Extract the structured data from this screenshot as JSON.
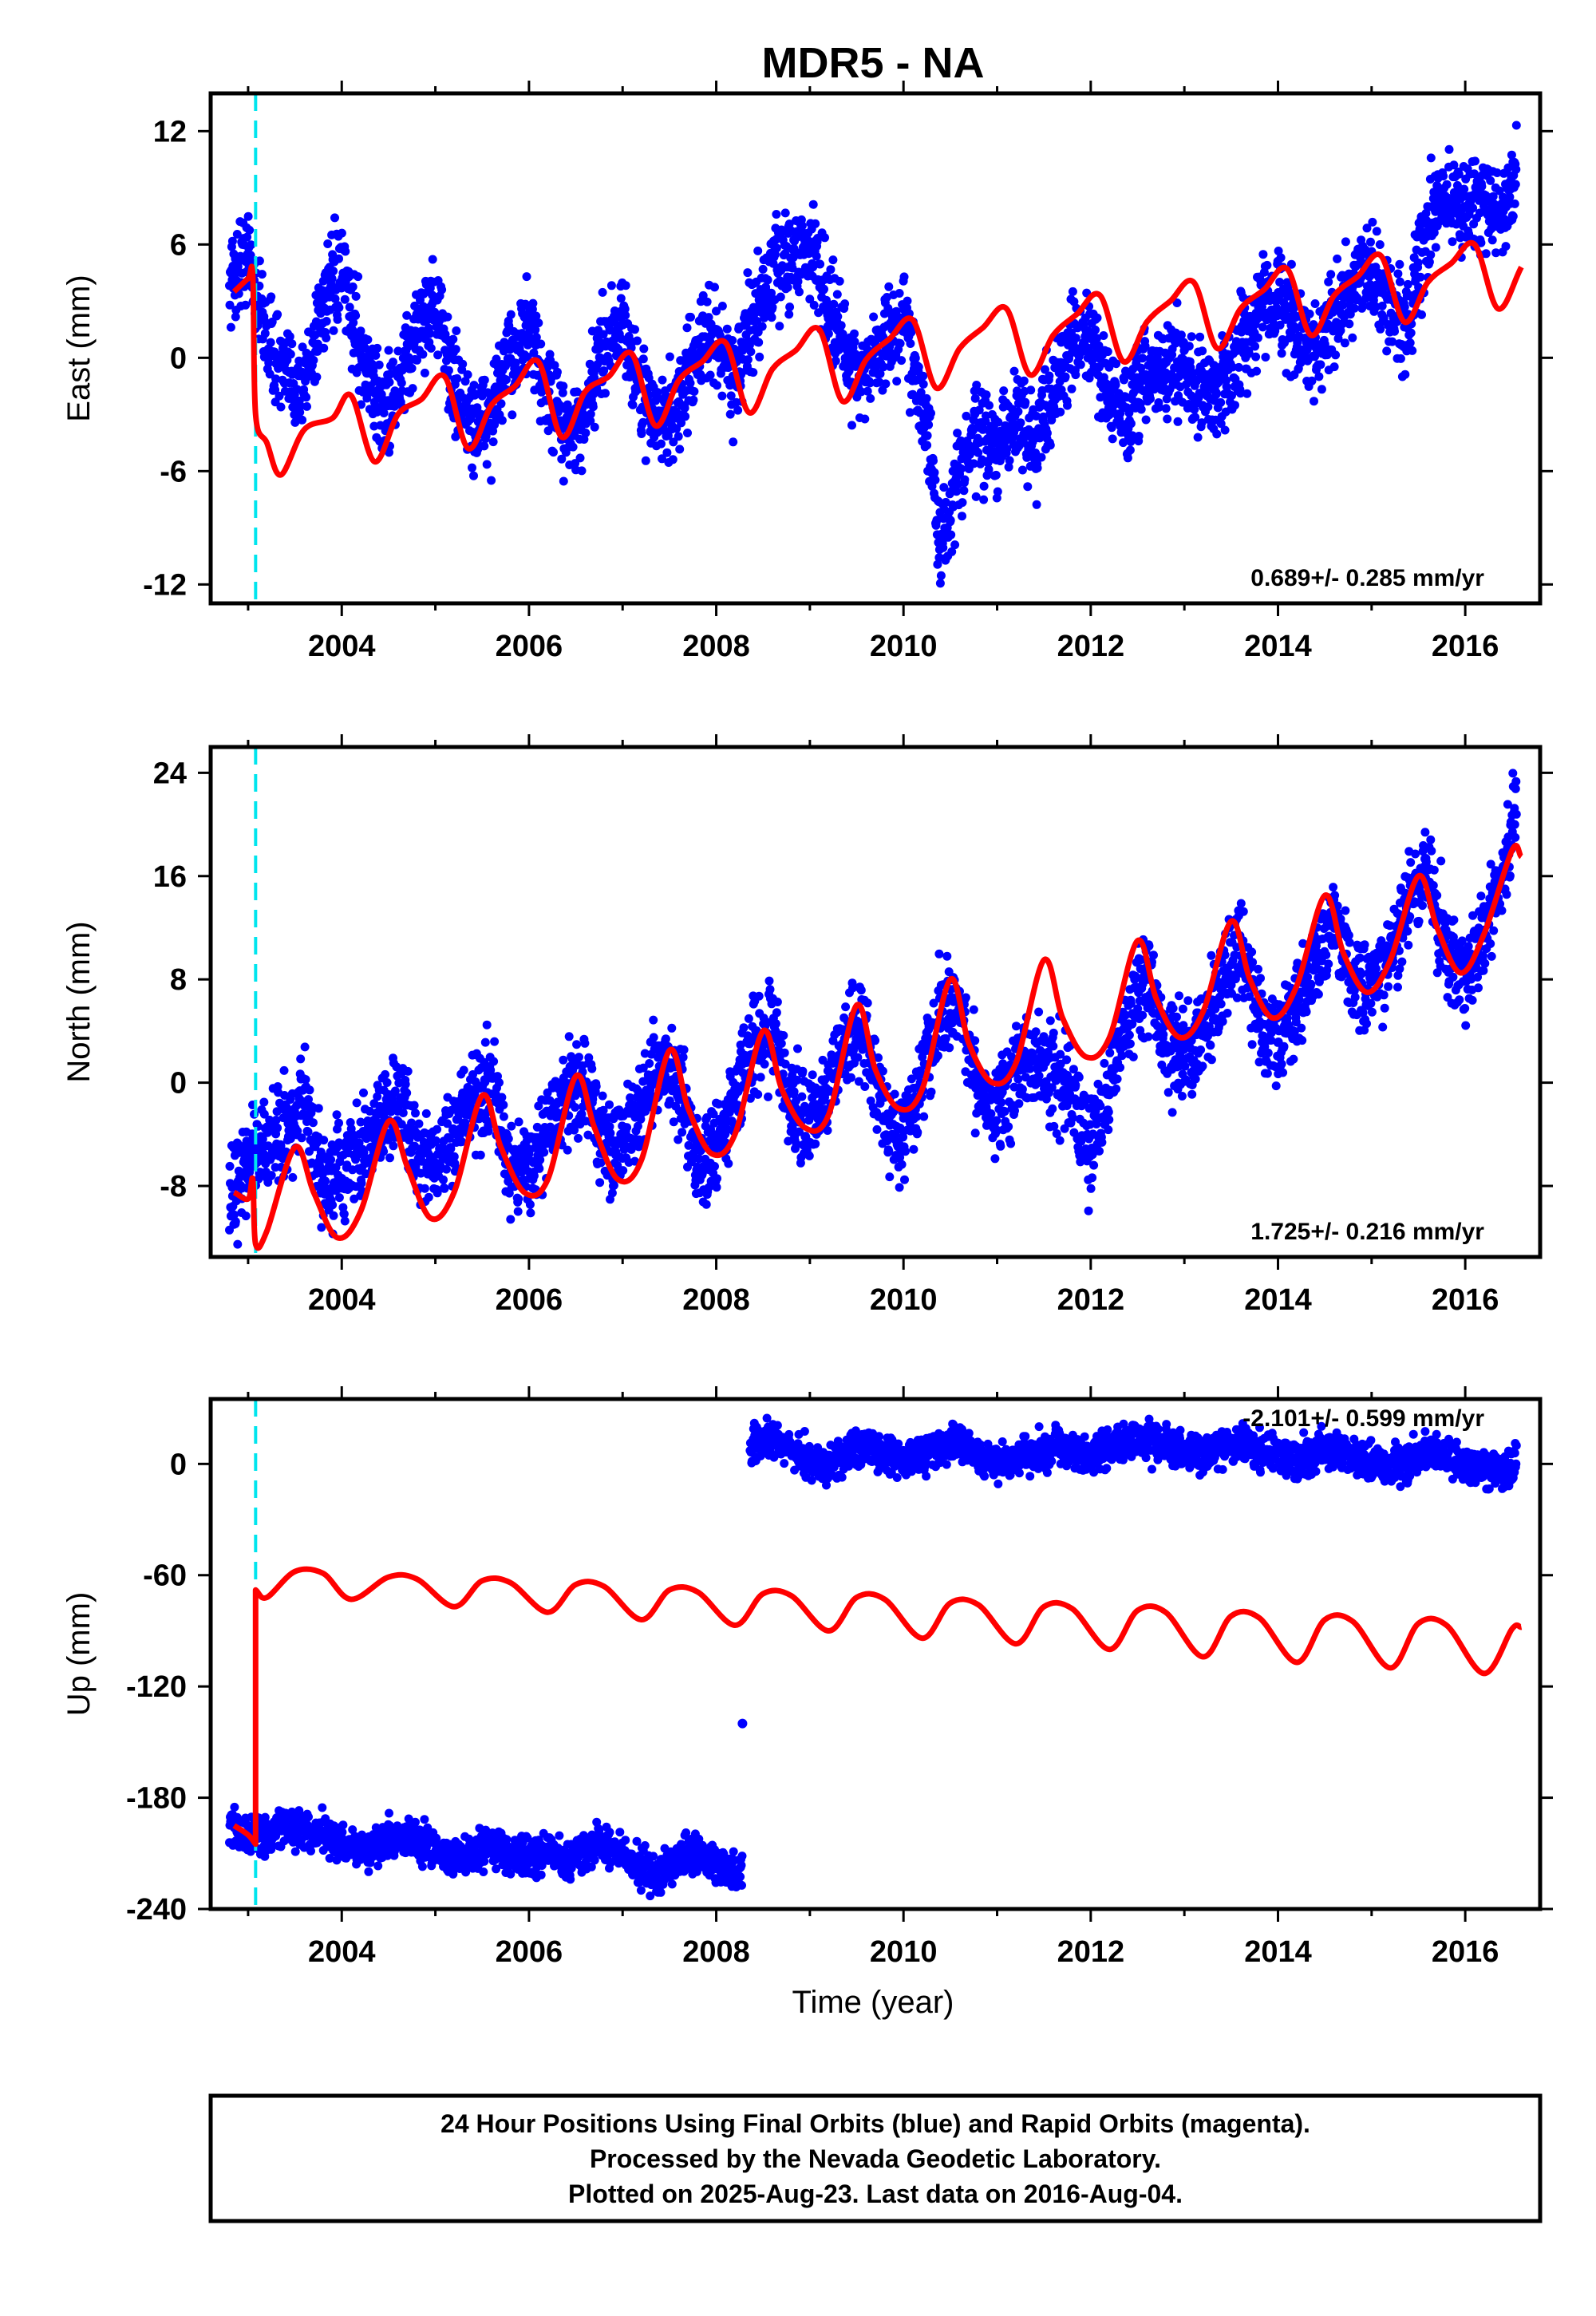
{
  "figure_title": "MDR5 - NA",
  "xlabel": "Time (year)",
  "footer": {
    "line1": "24 Hour Positions Using Final Orbits (blue) and Rapid Orbits (magenta).",
    "line2": "Processed by the Nevada Geodetic Laboratory.",
    "line3": "Plotted on 2025-Aug-23. Last data on 2016-Aug-04."
  },
  "colors": {
    "data_points": "#0000ff",
    "model_line": "#ff0000",
    "event_marker": "#00e5ee",
    "axes": "#000000"
  },
  "chart_data": [
    {
      "type": "scatter",
      "ylabel": "East (mm)",
      "rate_label": "0.689+/- 0.285 mm/yr",
      "xlim": [
        2002.6,
        2016.8
      ],
      "ylim": [
        -13,
        14
      ],
      "xticks": [
        "2004",
        "2006",
        "2008",
        "2010",
        "2012",
        "2014",
        "2016"
      ],
      "yticks": [
        "12",
        "6",
        "0",
        "-6",
        "-12"
      ],
      "event_marker_x": 2003.08,
      "observations": {
        "x": [
          2002.8,
          2003.0,
          2003.2,
          2003.4,
          2003.6,
          2003.8,
          2004.0,
          2004.2,
          2004.4,
          2004.6,
          2004.8,
          2005.0,
          2005.2,
          2005.4,
          2005.6,
          2005.8,
          2006.0,
          2006.2,
          2006.4,
          2006.6,
          2006.8,
          2007.0,
          2007.2,
          2007.4,
          2007.6,
          2007.8,
          2008.0,
          2008.2,
          2008.4,
          2008.6,
          2008.8,
          2009.0,
          2009.2,
          2009.4,
          2009.6,
          2009.8,
          2010.0,
          2010.2,
          2010.4,
          2010.6,
          2010.8,
          2011.0,
          2011.2,
          2011.4,
          2011.6,
          2011.8,
          2012.0,
          2012.2,
          2012.4,
          2012.6,
          2012.8,
          2013.0,
          2013.2,
          2013.4,
          2013.6,
          2013.8,
          2014.0,
          2014.2,
          2014.4,
          2014.6,
          2014.8,
          2015.0,
          2015.2,
          2015.4,
          2015.6,
          2015.8,
          2016.0,
          2016.2,
          2016.4,
          2016.55
        ],
        "y": [
          4.0,
          5.5,
          1.0,
          -1.0,
          -1.5,
          3.0,
          4.5,
          0.5,
          -2.5,
          -2.0,
          1.5,
          3.0,
          -1.5,
          -3.5,
          -3.0,
          0.0,
          1.5,
          -2.0,
          -4.0,
          -3.5,
          1.0,
          2.0,
          -2.0,
          -3.5,
          -2.5,
          0.5,
          1.0,
          -1.0,
          2.0,
          4.5,
          5.5,
          6.0,
          3.0,
          0.0,
          -1.0,
          1.0,
          2.0,
          -2.0,
          -10.0,
          -6.0,
          -4.0,
          -5.0,
          -3.0,
          -4.5,
          -1.5,
          0.5,
          1.0,
          -2.0,
          -3.5,
          -1.0,
          -0.5,
          -0.5,
          -2.0,
          -1.5,
          0.5,
          2.5,
          3.5,
          1.0,
          0.5,
          2.5,
          3.5,
          4.5,
          2.5,
          2.0,
          7.0,
          8.5,
          8.0,
          8.5,
          7.5,
          10.5
        ]
      },
      "model": {
        "x": [
          2002.85,
          2003.0,
          2003.05,
          2003.08,
          2003.2,
          2003.35,
          2003.6,
          2003.9,
          2004.1,
          2004.35,
          2004.6,
          2004.85,
          2005.1,
          2005.35,
          2005.6,
          2005.85,
          2006.1,
          2006.35,
          2006.6,
          2006.85,
          2007.1,
          2007.35,
          2007.6,
          2007.85,
          2008.1,
          2008.35,
          2008.6,
          2008.85,
          2009.1,
          2009.35,
          2009.6,
          2009.85,
          2010.1,
          2010.35,
          2010.6,
          2010.85,
          2011.1,
          2011.35,
          2011.6,
          2011.85,
          2012.1,
          2012.35,
          2012.6,
          2012.85,
          2013.1,
          2013.35,
          2013.6,
          2013.85,
          2014.1,
          2014.35,
          2014.6,
          2014.85,
          2015.1,
          2015.35,
          2015.6,
          2015.85,
          2016.1,
          2016.35,
          2016.6
        ],
        "y": [
          3.5,
          4.2,
          4.3,
          -3.0,
          -4.5,
          -6.2,
          -3.8,
          -3.2,
          -2.0,
          -5.5,
          -3.0,
          -2.2,
          -1.0,
          -4.8,
          -2.5,
          -1.5,
          -0.2,
          -4.2,
          -1.8,
          -1.0,
          0.2,
          -3.6,
          -1.2,
          -0.2,
          0.8,
          -2.9,
          -0.6,
          0.4,
          1.5,
          -2.3,
          -0.1,
          1.0,
          2.0,
          -1.6,
          0.5,
          1.6,
          2.6,
          -0.9,
          1.2,
          2.3,
          3.3,
          -0.2,
          1.9,
          3.0,
          4.0,
          0.5,
          2.6,
          3.6,
          4.7,
          1.2,
          3.3,
          4.3,
          5.4,
          1.9,
          4.0,
          5.0,
          6.0,
          2.6,
          4.8
        ]
      }
    },
    {
      "type": "scatter",
      "ylabel": "North (mm)",
      "rate_label": "1.725+/- 0.216 mm/yr",
      "xlim": [
        2002.6,
        2016.8
      ],
      "ylim": [
        -13.5,
        26
      ],
      "xticks": [
        "2004",
        "2006",
        "2008",
        "2010",
        "2012",
        "2014",
        "2016"
      ],
      "yticks": [
        "24",
        "16",
        "8",
        "0",
        "-8"
      ],
      "event_marker_x": 2003.08,
      "observations": {
        "x": [
          2002.8,
          2003.0,
          2003.2,
          2003.4,
          2003.6,
          2003.8,
          2004.0,
          2004.2,
          2004.4,
          2004.6,
          2004.8,
          2005.0,
          2005.2,
          2005.4,
          2005.6,
          2005.8,
          2006.0,
          2006.2,
          2006.4,
          2006.6,
          2006.8,
          2007.0,
          2007.2,
          2007.4,
          2007.6,
          2007.8,
          2008.0,
          2008.2,
          2008.4,
          2008.6,
          2008.8,
          2009.0,
          2009.2,
          2009.4,
          2009.6,
          2009.8,
          2010.0,
          2010.2,
          2010.4,
          2010.6,
          2010.8,
          2011.0,
          2011.2,
          2011.4,
          2011.6,
          2011.8,
          2012.0,
          2012.2,
          2012.4,
          2012.6,
          2012.8,
          2013.0,
          2013.2,
          2013.4,
          2013.6,
          2013.8,
          2014.0,
          2014.2,
          2014.4,
          2014.6,
          2014.8,
          2015.0,
          2015.2,
          2015.4,
          2015.6,
          2015.8,
          2016.0,
          2016.2,
          2016.4,
          2016.55
        ],
        "y": [
          -9.0,
          -6.0,
          -5.0,
          -3.5,
          -2.0,
          -8.0,
          -7.0,
          -5.5,
          -3.0,
          -1.0,
          -5.0,
          -6.0,
          -4.0,
          -1.5,
          0.0,
          -6.0,
          -6.5,
          -4.0,
          -1.0,
          0.5,
          -5.0,
          -4.5,
          -2.0,
          1.0,
          0.5,
          -6.0,
          -5.5,
          -1.0,
          3.0,
          4.5,
          -2.0,
          -3.5,
          0.0,
          3.5,
          4.0,
          -3.0,
          -4.0,
          0.0,
          5.0,
          6.0,
          0.0,
          -2.0,
          1.0,
          2.0,
          1.0,
          -1.0,
          -5.0,
          0.0,
          5.0,
          8.0,
          3.0,
          1.5,
          4.5,
          7.5,
          11.0,
          5.0,
          3.5,
          6.0,
          9.0,
          13.0,
          7.5,
          7.0,
          10.0,
          14.0,
          16.5,
          10.0,
          9.0,
          11.0,
          16.0,
          21.5
        ]
      },
      "model": {
        "x": [
          2002.85,
          2003.0,
          2003.05,
          2003.08,
          2003.2,
          2003.5,
          2003.7,
          2003.95,
          2004.2,
          2004.5,
          2004.7,
          2004.95,
          2005.2,
          2005.5,
          2005.7,
          2005.95,
          2006.2,
          2006.5,
          2006.7,
          2006.95,
          2007.2,
          2007.5,
          2007.7,
          2007.95,
          2008.2,
          2008.5,
          2008.7,
          2008.95,
          2009.2,
          2009.5,
          2009.7,
          2009.95,
          2010.2,
          2010.5,
          2010.7,
          2010.95,
          2011.2,
          2011.5,
          2011.7,
          2011.95,
          2012.2,
          2012.5,
          2012.7,
          2012.95,
          2013.2,
          2013.5,
          2013.7,
          2013.95,
          2014.2,
          2014.5,
          2014.7,
          2014.95,
          2015.2,
          2015.5,
          2015.7,
          2015.95,
          2016.2,
          2016.5,
          2016.6
        ],
        "y": [
          -8.5,
          -9.0,
          -7.5,
          -12.5,
          -11.5,
          -5.0,
          -8.5,
          -12.0,
          -10.0,
          -3.0,
          -6.5,
          -10.5,
          -8.5,
          -1.0,
          -5.0,
          -8.5,
          -7.5,
          0.5,
          -3.5,
          -7.5,
          -6.0,
          2.5,
          -2.0,
          -5.5,
          -4.0,
          4.0,
          -0.5,
          -3.5,
          -2.5,
          6.0,
          1.0,
          -2.0,
          -0.5,
          8.0,
          3.0,
          0.0,
          1.5,
          9.5,
          5.0,
          2.0,
          3.5,
          11.0,
          6.5,
          3.5,
          5.5,
          12.5,
          8.0,
          5.0,
          7.5,
          14.5,
          10.0,
          7.0,
          9.5,
          16.0,
          12.0,
          8.5,
          11.5,
          18.0,
          17.5
        ]
      }
    },
    {
      "type": "scatter",
      "ylabel": "Up (mm)",
      "rate_label": "-2.101+/- 0.599 mm/yr",
      "xlim": [
        2002.6,
        2016.8
      ],
      "ylim": [
        -240,
        35
      ],
      "xticks": [
        "2004",
        "2006",
        "2008",
        "2010",
        "2012",
        "2014",
        "2016"
      ],
      "yticks": [
        "0",
        "-60",
        "-120",
        "-180",
        "-240"
      ],
      "event_marker_x": 2003.08,
      "observations": {
        "x": [
          2002.8,
          2003.0,
          2003.2,
          2003.4,
          2003.6,
          2003.8,
          2004.0,
          2004.2,
          2004.4,
          2004.6,
          2004.8,
          2005.0,
          2005.2,
          2005.4,
          2005.6,
          2005.8,
          2006.0,
          2006.2,
          2006.4,
          2006.6,
          2006.8,
          2007.0,
          2007.2,
          2007.4,
          2007.6,
          2007.8,
          2008.0,
          2008.2,
          2008.28,
          2008.4,
          2008.6,
          2008.8,
          2009.0,
          2009.2,
          2009.4,
          2009.6,
          2009.8,
          2010.0,
          2010.2,
          2010.4,
          2010.6,
          2010.8,
          2011.0,
          2011.2,
          2011.4,
          2011.6,
          2011.8,
          2012.0,
          2012.2,
          2012.4,
          2012.6,
          2012.8,
          2013.0,
          2013.2,
          2013.4,
          2013.6,
          2013.8,
          2014.0,
          2014.2,
          2014.4,
          2014.6,
          2014.8,
          2015.0,
          2015.2,
          2015.4,
          2015.6,
          2015.8,
          2016.0,
          2016.2,
          2016.4,
          2016.55
        ],
        "y": [
          -195,
          -200,
          -200,
          -195,
          -198,
          -200,
          -205,
          -208,
          -205,
          -200,
          -202,
          -208,
          -212,
          -210,
          -205,
          -210,
          -212,
          -208,
          -215,
          -208,
          -205,
          -210,
          -218,
          -222,
          -212,
          -210,
          -215,
          -222,
          -140,
          10,
          14,
          8,
          2,
          -2,
          5,
          10,
          6,
          2,
          4,
          8,
          12,
          5,
          0,
          3,
          6,
          10,
          8,
          4,
          8,
          12,
          14,
          10,
          6,
          5,
          10,
          12,
          8,
          4,
          2,
          6,
          8,
          4,
          0,
          -2,
          2,
          6,
          4,
          0,
          -4,
          -2,
          -3
        ]
      },
      "model": {
        "x": [
          2002.85,
          2003.0,
          2003.08,
          2003.08,
          2003.2,
          2003.5,
          2003.8,
          2004.1,
          2004.5,
          2004.8,
          2005.2,
          2005.5,
          2005.8,
          2006.2,
          2006.5,
          2006.8,
          2007.2,
          2007.5,
          2007.8,
          2008.2,
          2008.5,
          2008.8,
          2009.2,
          2009.5,
          2009.8,
          2010.2,
          2010.5,
          2010.8,
          2011.2,
          2011.5,
          2011.8,
          2012.2,
          2012.5,
          2012.8,
          2013.2,
          2013.5,
          2013.8,
          2014.2,
          2014.5,
          2014.8,
          2015.2,
          2015.5,
          2015.8,
          2016.2,
          2016.5,
          2016.6
        ],
        "y": [
          -195,
          -200,
          -205,
          -68,
          -72,
          -58,
          -59,
          -73,
          -61,
          -62,
          -77,
          -63,
          -64,
          -80,
          -65,
          -66,
          -84,
          -68,
          -69,
          -87,
          -70,
          -71,
          -90,
          -72,
          -73,
          -94,
          -75,
          -76,
          -97,
          -77,
          -78,
          -100,
          -79,
          -80,
          -104,
          -82,
          -83,
          -107,
          -84,
          -85,
          -110,
          -86,
          -87,
          -113,
          -89,
          -88
        ]
      }
    }
  ]
}
